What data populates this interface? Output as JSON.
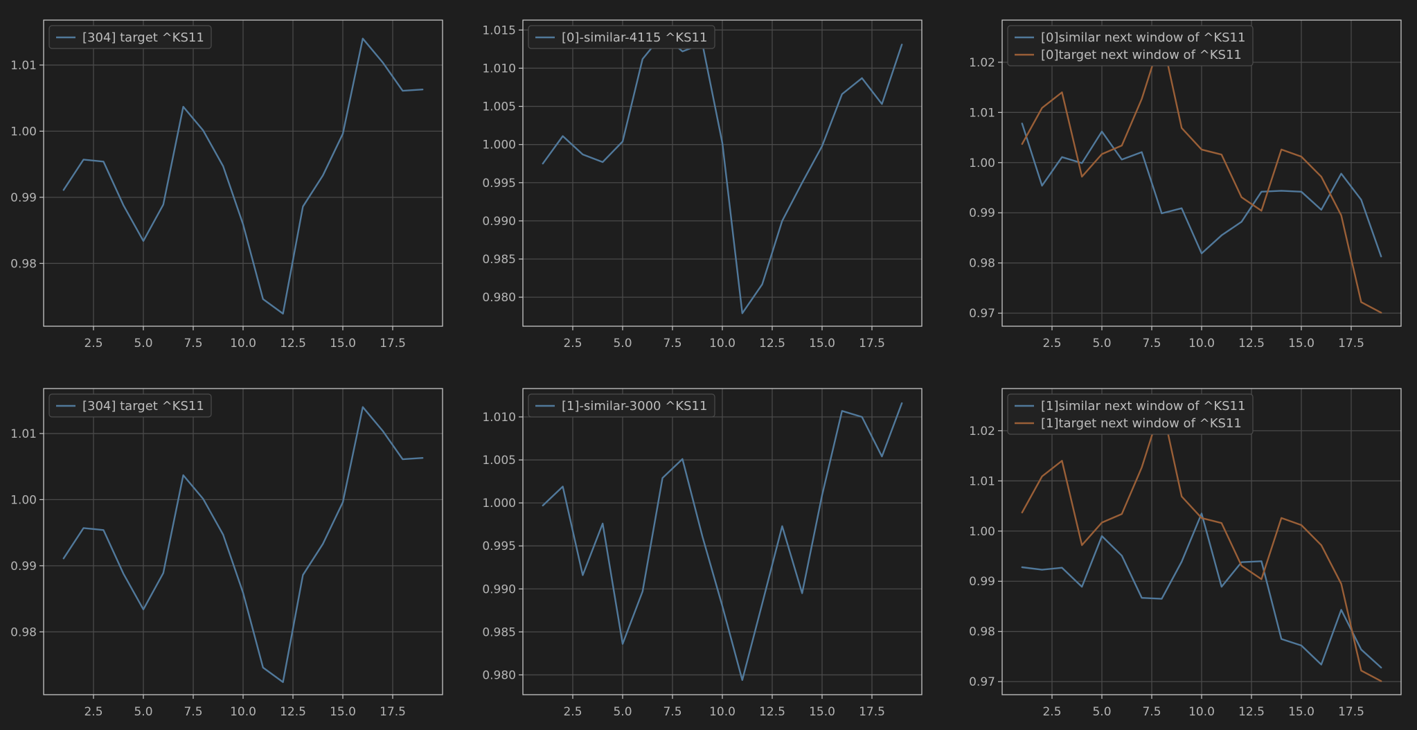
{
  "colors": {
    "background": "#1e1e1e",
    "series_blue": "#51799b",
    "series_orange": "#9a5f37"
  },
  "chart_data": [
    {
      "type": "line",
      "xlim": [
        0,
        20
      ],
      "ylim": [
        0.9705,
        1.0168
      ],
      "xticks": [
        2.5,
        5.0,
        7.5,
        10.0,
        12.5,
        15.0,
        17.5
      ],
      "xtick_labels": [
        "2.5",
        "5.0",
        "7.5",
        "10.0",
        "12.5",
        "15.0",
        "17.5"
      ],
      "yticks": [
        0.98,
        0.99,
        1.0,
        1.01
      ],
      "ytick_labels": [
        "0.98",
        "0.99",
        "1.00",
        "1.01"
      ],
      "grid": true,
      "legend": "top-left",
      "series": [
        {
          "name": "[304] target ^KS11",
          "color": "#51799b",
          "x": [
            1,
            2,
            3,
            4,
            5,
            6,
            7,
            8,
            9,
            10,
            11,
            12,
            13,
            14,
            15,
            16,
            17,
            18,
            19
          ],
          "values": [
            0.9911,
            0.9957,
            0.9954,
            0.9888,
            0.9834,
            0.9889,
            1.0037,
            1.0001,
            0.9947,
            0.9859,
            0.9746,
            0.9724,
            0.9886,
            0.9933,
            0.9996,
            1.014,
            1.0104,
            1.0061,
            1.0063
          ]
        }
      ]
    },
    {
      "type": "line",
      "xlim": [
        0,
        20
      ],
      "ylim": [
        0.9762,
        1.0163
      ],
      "xticks": [
        2.5,
        5.0,
        7.5,
        10.0,
        12.5,
        15.0,
        17.5
      ],
      "xtick_labels": [
        "2.5",
        "5.0",
        "7.5",
        "10.0",
        "12.5",
        "15.0",
        "17.5"
      ],
      "yticks": [
        0.98,
        0.985,
        0.99,
        0.995,
        1.0,
        1.005,
        1.01,
        1.015
      ],
      "ytick_labels": [
        "0.980",
        "0.985",
        "0.990",
        "0.995",
        "1.000",
        "1.005",
        "1.010",
        "1.015"
      ],
      "grid": true,
      "legend": "top-left",
      "series": [
        {
          "name": "[0]-similar-4115 ^KS11",
          "color": "#51799b",
          "x": [
            1,
            2,
            3,
            4,
            5,
            6,
            7,
            8,
            9,
            10,
            11,
            12,
            13,
            14,
            15,
            16,
            17,
            18,
            19
          ],
          "values": [
            0.9975,
            1.0011,
            0.9987,
            0.9977,
            1.0004,
            1.0112,
            1.0144,
            1.0122,
            1.0132,
            1.0002,
            0.9779,
            0.9817,
            0.99,
            0.995,
            0.9998,
            1.0066,
            1.0087,
            1.0053,
            1.0131
          ]
        }
      ]
    },
    {
      "type": "line",
      "xlim": [
        0,
        20
      ],
      "ylim": [
        0.9674,
        1.0284
      ],
      "xticks": [
        2.5,
        5.0,
        7.5,
        10.0,
        12.5,
        15.0,
        17.5
      ],
      "xtick_labels": [
        "2.5",
        "5.0",
        "7.5",
        "10.0",
        "12.5",
        "15.0",
        "17.5"
      ],
      "yticks": [
        0.97,
        0.98,
        0.99,
        1.0,
        1.01,
        1.02
      ],
      "ytick_labels": [
        "0.97",
        "0.98",
        "0.99",
        "1.00",
        "1.01",
        "1.02"
      ],
      "grid": true,
      "legend": "top-left",
      "series": [
        {
          "name": "[0]similar next window of ^KS11",
          "color": "#51799b",
          "x": [
            1,
            2,
            3,
            4,
            5,
            6,
            7,
            8,
            9,
            10,
            11,
            12,
            13,
            14,
            15,
            16,
            17,
            18,
            19
          ],
          "values": [
            1.0078,
            0.9954,
            1.0011,
            0.9999,
            1.0062,
            1.0006,
            1.0021,
            0.9899,
            0.9909,
            0.9819,
            0.9855,
            0.9882,
            0.9942,
            0.9944,
            0.9942,
            0.9906,
            0.9978,
            0.9926,
            0.9813
          ]
        },
        {
          "name": "[0]target next window of ^KS11",
          "color": "#9a5f37",
          "x": [
            1,
            2,
            3,
            4,
            5,
            6,
            7,
            8,
            9,
            10,
            11,
            12,
            13,
            14,
            15,
            16,
            17,
            18,
            19
          ],
          "values": [
            1.0037,
            1.0109,
            1.014,
            0.9972,
            1.0017,
            1.0034,
            1.0127,
            1.0252,
            1.0069,
            1.0026,
            1.0016,
            0.9931,
            0.9904,
            1.0026,
            1.0012,
            0.9972,
            0.9895,
            0.9722,
            0.9701
          ]
        }
      ]
    },
    {
      "type": "line",
      "xlim": [
        0,
        20
      ],
      "ylim": [
        0.9705,
        1.0168
      ],
      "xticks": [
        2.5,
        5.0,
        7.5,
        10.0,
        12.5,
        15.0,
        17.5
      ],
      "xtick_labels": [
        "2.5",
        "5.0",
        "7.5",
        "10.0",
        "12.5",
        "15.0",
        "17.5"
      ],
      "yticks": [
        0.98,
        0.99,
        1.0,
        1.01
      ],
      "ytick_labels": [
        "0.98",
        "0.99",
        "1.00",
        "1.01"
      ],
      "grid": true,
      "legend": "top-left",
      "series": [
        {
          "name": "[304] target ^KS11",
          "color": "#51799b",
          "x": [
            1,
            2,
            3,
            4,
            5,
            6,
            7,
            8,
            9,
            10,
            11,
            12,
            13,
            14,
            15,
            16,
            17,
            18,
            19
          ],
          "values": [
            0.9911,
            0.9957,
            0.9954,
            0.9888,
            0.9834,
            0.9889,
            1.0037,
            1.0001,
            0.9947,
            0.9859,
            0.9746,
            0.9724,
            0.9886,
            0.9933,
            0.9996,
            1.014,
            1.0104,
            1.0061,
            1.0063
          ]
        }
      ]
    },
    {
      "type": "line",
      "xlim": [
        0,
        20
      ],
      "ylim": [
        0.9777,
        1.0133
      ],
      "xticks": [
        2.5,
        5.0,
        7.5,
        10.0,
        12.5,
        15.0,
        17.5
      ],
      "xtick_labels": [
        "2.5",
        "5.0",
        "7.5",
        "10.0",
        "12.5",
        "15.0",
        "17.5"
      ],
      "yticks": [
        0.98,
        0.985,
        0.99,
        0.995,
        1.0,
        1.005,
        1.01
      ],
      "ytick_labels": [
        "0.980",
        "0.985",
        "0.990",
        "0.995",
        "1.000",
        "1.005",
        "1.010"
      ],
      "grid": true,
      "legend": "top-left",
      "series": [
        {
          "name": "[1]-similar-3000 ^KS11",
          "color": "#51799b",
          "x": [
            1,
            2,
            3,
            4,
            5,
            6,
            7,
            8,
            9,
            10,
            11,
            12,
            13,
            14,
            15,
            16,
            17,
            18,
            19
          ],
          "values": [
            0.9997,
            1.0019,
            0.9916,
            0.9976,
            0.9836,
            0.9897,
            1.0029,
            1.0051,
            0.9961,
            0.988,
            0.9794,
            0.9883,
            0.9973,
            0.9895,
            1.0009,
            1.0107,
            1.01,
            1.0054,
            1.0116
          ]
        }
      ]
    },
    {
      "type": "line",
      "xlim": [
        0,
        20
      ],
      "ylim": [
        0.9674,
        1.0284
      ],
      "xticks": [
        2.5,
        5.0,
        7.5,
        10.0,
        12.5,
        15.0,
        17.5
      ],
      "xtick_labels": [
        "2.5",
        "5.0",
        "7.5",
        "10.0",
        "12.5",
        "15.0",
        "17.5"
      ],
      "yticks": [
        0.97,
        0.98,
        0.99,
        1.0,
        1.01,
        1.02
      ],
      "ytick_labels": [
        "0.97",
        "0.98",
        "0.99",
        "1.00",
        "1.01",
        "1.02"
      ],
      "grid": true,
      "legend": "top-left",
      "series": [
        {
          "name": "[1]similar next window of ^KS11",
          "color": "#51799b",
          "x": [
            1,
            2,
            3,
            4,
            5,
            6,
            7,
            8,
            9,
            10,
            11,
            12,
            13,
            14,
            15,
            16,
            17,
            18,
            19
          ],
          "values": [
            0.9928,
            0.9923,
            0.9927,
            0.9889,
            0.999,
            0.9951,
            0.9867,
            0.9865,
            0.9939,
            1.0035,
            0.9889,
            0.9938,
            0.994,
            0.9785,
            0.9772,
            0.9734,
            0.9843,
            0.9764,
            0.9728
          ]
        },
        {
          "name": "[1]target next window of ^KS11",
          "color": "#9a5f37",
          "x": [
            1,
            2,
            3,
            4,
            5,
            6,
            7,
            8,
            9,
            10,
            11,
            12,
            13,
            14,
            15,
            16,
            17,
            18,
            19
          ],
          "values": [
            1.0037,
            1.0109,
            1.014,
            0.9972,
            1.0017,
            1.0034,
            1.0127,
            1.0252,
            1.0069,
            1.0026,
            1.0016,
            0.9931,
            0.9904,
            1.0026,
            1.0012,
            0.9972,
            0.9895,
            0.9722,
            0.9701
          ]
        }
      ]
    }
  ]
}
